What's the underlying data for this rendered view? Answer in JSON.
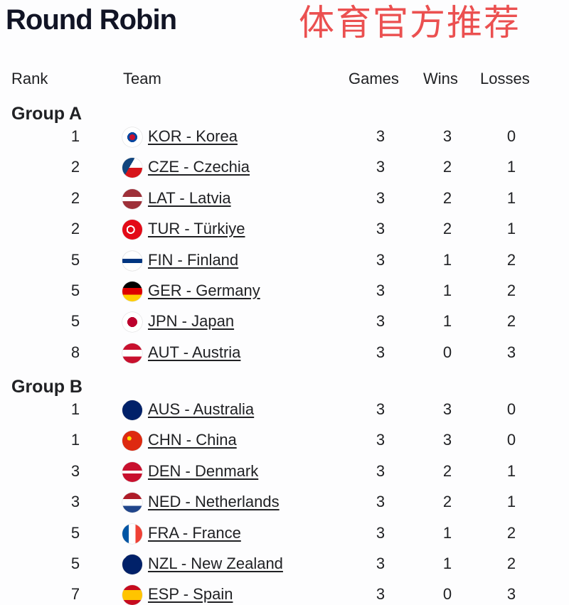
{
  "title": "Round Robin",
  "watermark": "体育官方推荐",
  "headers": {
    "rank": "Rank",
    "team": "Team",
    "games": "Games",
    "wins": "Wins",
    "losses": "Losses"
  },
  "groups": [
    {
      "name": "Group A",
      "rows": [
        {
          "rank": "1",
          "team": "KOR - Korea",
          "flag": "korea-flag-icon",
          "games": "3",
          "wins": "3",
          "losses": "0"
        },
        {
          "rank": "2",
          "team": "CZE - Czechia",
          "flag": "czechia-flag-icon",
          "games": "3",
          "wins": "2",
          "losses": "1"
        },
        {
          "rank": "2",
          "team": "LAT - Latvia",
          "flag": "latvia-flag-icon",
          "games": "3",
          "wins": "2",
          "losses": "1"
        },
        {
          "rank": "2",
          "team": "TUR - Türkiye",
          "flag": "turkiye-flag-icon",
          "games": "3",
          "wins": "2",
          "losses": "1"
        },
        {
          "rank": "5",
          "team": "FIN - Finland",
          "flag": "finland-flag-icon",
          "games": "3",
          "wins": "1",
          "losses": "2"
        },
        {
          "rank": "5",
          "team": "GER - Germany",
          "flag": "germany-flag-icon",
          "games": "3",
          "wins": "1",
          "losses": "2"
        },
        {
          "rank": "5",
          "team": "JPN - Japan",
          "flag": "japan-flag-icon",
          "games": "3",
          "wins": "1",
          "losses": "2"
        },
        {
          "rank": "8",
          "team": "AUT - Austria",
          "flag": "austria-flag-icon",
          "games": "3",
          "wins": "0",
          "losses": "3"
        }
      ]
    },
    {
      "name": "Group B",
      "rows": [
        {
          "rank": "1",
          "team": "AUS - Australia",
          "flag": "australia-flag-icon",
          "games": "3",
          "wins": "3",
          "losses": "0"
        },
        {
          "rank": "1",
          "team": "CHN - China",
          "flag": "china-flag-icon",
          "games": "3",
          "wins": "3",
          "losses": "0"
        },
        {
          "rank": "3",
          "team": "DEN - Denmark",
          "flag": "denmark-flag-icon",
          "games": "3",
          "wins": "2",
          "losses": "1"
        },
        {
          "rank": "3",
          "team": "NED - Netherlands",
          "flag": "netherlands-flag-icon",
          "games": "3",
          "wins": "2",
          "losses": "1"
        },
        {
          "rank": "5",
          "team": "FRA - France",
          "flag": "france-flag-icon",
          "games": "3",
          "wins": "1",
          "losses": "2"
        },
        {
          "rank": "5",
          "team": "NZL - New Zealand",
          "flag": "new-zealand-flag-icon",
          "games": "3",
          "wins": "1",
          "losses": "2"
        },
        {
          "rank": "7",
          "team": "ESP - Spain",
          "flag": "spain-flag-icon",
          "games": "3",
          "wins": "0",
          "losses": "3"
        }
      ]
    }
  ]
}
